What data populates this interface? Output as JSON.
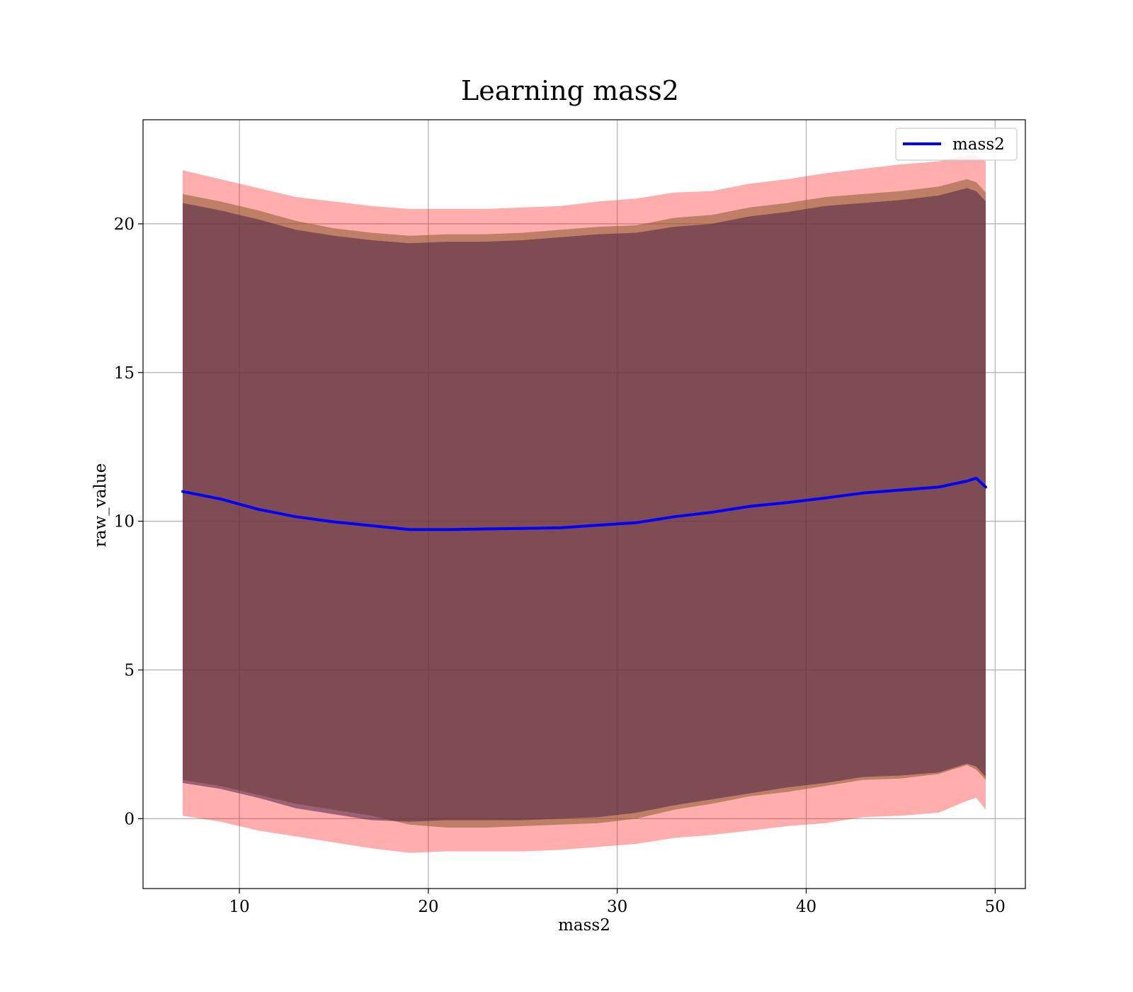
{
  "chart_data": {
    "type": "area",
    "title": "Learning mass2",
    "xlabel": "mass2",
    "ylabel": "raw_value",
    "xlim": [
      4.9,
      51.6
    ],
    "ylim": [
      -2.35,
      23.5
    ],
    "xticks": [
      10,
      20,
      30,
      40,
      50
    ],
    "yticks": [
      0,
      5,
      10,
      15,
      20
    ],
    "grid": true,
    "legend": {
      "position": "upper right",
      "entries": [
        "mass2"
      ]
    },
    "x": [
      7.0,
      9.0,
      11.0,
      13.0,
      15.0,
      17.0,
      19.0,
      21.0,
      23.0,
      25.0,
      27.0,
      29.0,
      31.0,
      33.0,
      35.0,
      37.0,
      39.0,
      41.0,
      43.0,
      45.0,
      47.0,
      48.5,
      49.0,
      49.5
    ],
    "series": [
      {
        "name": "mass2",
        "color": "#0000ff",
        "values": [
          11.0,
          10.75,
          10.4,
          10.15,
          9.98,
          9.85,
          9.72,
          9.72,
          9.74,
          9.76,
          9.78,
          9.87,
          9.95,
          10.15,
          10.3,
          10.5,
          10.63,
          10.78,
          10.95,
          11.05,
          11.15,
          11.35,
          11.45,
          11.15
        ]
      }
    ],
    "bands": [
      {
        "color": "#ff0000",
        "opacity": 0.32,
        "upper": [
          21.8,
          21.5,
          21.2,
          20.9,
          20.75,
          20.6,
          20.5,
          20.5,
          20.5,
          20.55,
          20.6,
          20.75,
          20.85,
          21.05,
          21.1,
          21.35,
          21.5,
          21.7,
          21.85,
          22.0,
          22.1,
          22.3,
          22.3,
          22.1
        ],
        "lower": [
          0.1,
          -0.1,
          -0.4,
          -0.6,
          -0.8,
          -1.0,
          -1.15,
          -1.1,
          -1.1,
          -1.1,
          -1.05,
          -0.95,
          -0.85,
          -0.65,
          -0.55,
          -0.4,
          -0.25,
          -0.15,
          0.05,
          0.1,
          0.2,
          0.6,
          0.7,
          0.3
        ]
      },
      {
        "color": "#8b5a2b",
        "opacity": 0.55,
        "upper": [
          21.0,
          20.75,
          20.45,
          20.1,
          19.85,
          19.7,
          19.6,
          19.65,
          19.65,
          19.7,
          19.8,
          19.9,
          19.95,
          20.2,
          20.3,
          20.55,
          20.7,
          20.9,
          21.0,
          21.1,
          21.25,
          21.5,
          21.4,
          21.05
        ],
        "lower": [
          1.3,
          1.1,
          0.8,
          0.5,
          0.3,
          0.1,
          -0.2,
          -0.3,
          -0.3,
          -0.25,
          -0.2,
          -0.15,
          0.0,
          0.3,
          0.5,
          0.75,
          0.9,
          1.1,
          1.3,
          1.35,
          1.5,
          1.8,
          1.65,
          1.3
        ]
      },
      {
        "color": "#4a2245",
        "opacity": 0.55,
        "upper": [
          20.7,
          20.45,
          20.15,
          19.8,
          19.6,
          19.45,
          19.35,
          19.4,
          19.4,
          19.45,
          19.55,
          19.65,
          19.7,
          19.9,
          20.0,
          20.25,
          20.4,
          20.6,
          20.7,
          20.8,
          20.95,
          21.2,
          21.1,
          20.75
        ],
        "lower": [
          1.2,
          1.0,
          0.7,
          0.35,
          0.15,
          -0.05,
          -0.1,
          -0.05,
          -0.05,
          -0.05,
          0.0,
          0.05,
          0.2,
          0.45,
          0.65,
          0.85,
          1.05,
          1.2,
          1.4,
          1.45,
          1.55,
          1.85,
          1.75,
          1.4
        ]
      }
    ]
  }
}
